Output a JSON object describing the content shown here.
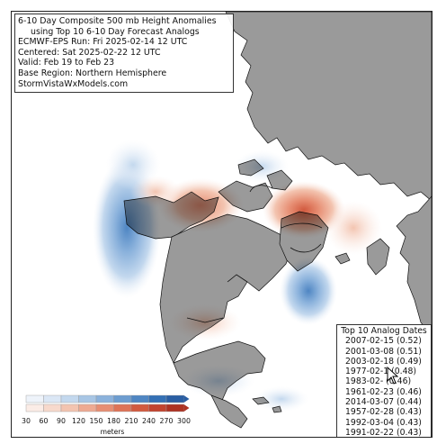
{
  "title_lines": [
    "6-10 Day Composite 500 mb Height Anomalies",
    "using Top 10 6-10 Day Forecast Analogs",
    "ECMWF-EPS Run: Fri 2025-02-14 12 UTC",
    "Centered: Sat 2025-02-22 12 UTC",
    "Valid: Feb 19 to Feb 23",
    "Base Region: Northern Hemisphere",
    "StormVistaWxModels.com"
  ],
  "analogs": {
    "header": "Top 10 Analog Dates",
    "rows": [
      "2007-02-15 (0.52)",
      "2001-03-08 (0.51)",
      "2003-02-18 (0.49)",
      "1977-02-1 (0.48)",
      "1983-02- (0.46)",
      "1961-02-23 (0.46)",
      "2014-03-07 (0.44)",
      "1957-02-28 (0.43)",
      "1992-03-04 (0.43)",
      "1991-02-22 (0.43)"
    ]
  },
  "legend": {
    "ticks": [
      "30",
      "60",
      "90",
      "120",
      "150",
      "180",
      "210",
      "240",
      "270",
      "300"
    ],
    "unit": "meters",
    "negative_colors": [
      "#eef3fa",
      "#dbe7f5",
      "#c3d8ee",
      "#a8c6e5",
      "#8bb2dc",
      "#6d9dd0",
      "#4f86c3",
      "#3470b5",
      "#2a5ea3"
    ],
    "positive_colors": [
      "#fbece6",
      "#f7d9cc",
      "#f3c4b0",
      "#eeaa92",
      "#e78e73",
      "#de7356",
      "#d25a3f",
      "#c2432e",
      "#ad3222"
    ]
  },
  "colors": {
    "land": "#9a9a9a",
    "ocean": "#ffffff",
    "border": "#111111"
  }
}
